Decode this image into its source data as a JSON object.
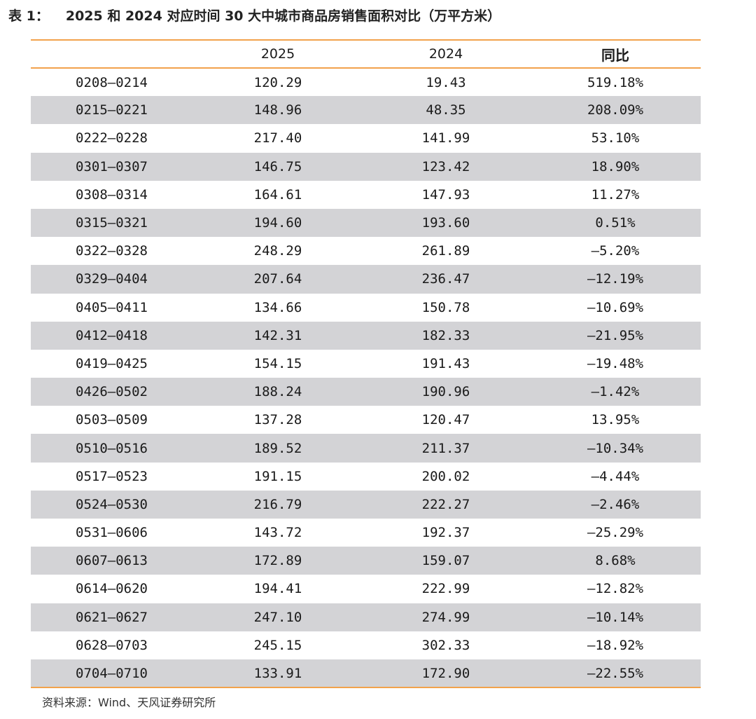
{
  "title": {
    "label": "表 1：",
    "text": "2025 和 2024 对应时间 30 大中城市商品房销售面积对比（万平方米）"
  },
  "table": {
    "headers": [
      "",
      "2025",
      "2024",
      "同比"
    ],
    "rows": [
      [
        "0208—0214",
        "120.29",
        "19.43",
        "519.18%"
      ],
      [
        "0215—0221",
        "148.96",
        "48.35",
        "208.09%"
      ],
      [
        "0222—0228",
        "217.40",
        "141.99",
        "53.10%"
      ],
      [
        "0301—0307",
        "146.75",
        "123.42",
        "18.90%"
      ],
      [
        "0308—0314",
        "164.61",
        "147.93",
        "11.27%"
      ],
      [
        "0315—0321",
        "194.60",
        "193.60",
        "0.51%"
      ],
      [
        "0322—0328",
        "248.29",
        "261.89",
        "—5.20%"
      ],
      [
        "0329—0404",
        "207.64",
        "236.47",
        "—12.19%"
      ],
      [
        "0405—0411",
        "134.66",
        "150.78",
        "—10.69%"
      ],
      [
        "0412—0418",
        "142.31",
        "182.33",
        "—21.95%"
      ],
      [
        "0419—0425",
        "154.15",
        "191.43",
        "—19.48%"
      ],
      [
        "0426—0502",
        "188.24",
        "190.96",
        "—1.42%"
      ],
      [
        "0503—0509",
        "137.28",
        "120.47",
        "13.95%"
      ],
      [
        "0510—0516",
        "189.52",
        "211.37",
        "—10.34%"
      ],
      [
        "0517—0523",
        "191.15",
        "200.02",
        "—4.44%"
      ],
      [
        "0524—0530",
        "216.79",
        "222.27",
        "—2.46%"
      ],
      [
        "0531—0606",
        "143.72",
        "192.37",
        "—25.29%"
      ],
      [
        "0607—0613",
        "172.89",
        "159.07",
        "8.68%"
      ],
      [
        "0614—0620",
        "194.41",
        "222.99",
        "—12.82%"
      ],
      [
        "0621—0627",
        "247.10",
        "274.99",
        "—10.14%"
      ],
      [
        "0628—0703",
        "245.15",
        "302.33",
        "—18.92%"
      ],
      [
        "0704—0710",
        "133.91",
        "172.90",
        "—22.55%"
      ]
    ]
  },
  "source": "资料来源：Wind、天风证券研究所",
  "colors": {
    "rule": "#f2a24c",
    "stripe": "#d3d3d6"
  }
}
